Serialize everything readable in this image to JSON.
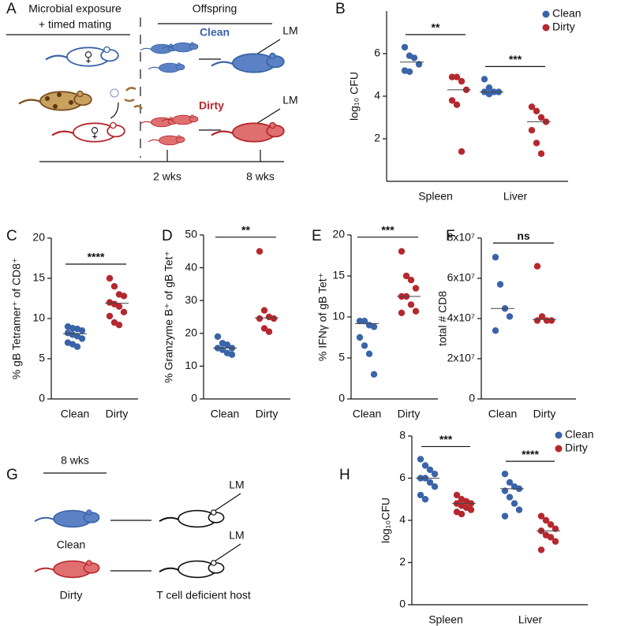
{
  "panel_a": {
    "letter": "A",
    "exposure": "Microbial exposure",
    "mating": "+ timed mating",
    "offspring": "Offspring",
    "clean": "Clean",
    "dirty": "Dirty",
    "lm": [
      "LM",
      "LM"
    ],
    "times": [
      "2 wks",
      "8 wks"
    ]
  },
  "panel_g": {
    "letter": "G",
    "time": "8 wks",
    "lm": [
      "LM",
      "LM"
    ],
    "clean": "Clean",
    "dirty": "Dirty",
    "host": "T cell deficient host"
  },
  "chart_data": [
    {
      "letter": "B",
      "type": "strip",
      "ylabel": "log₁₀ CFU",
      "ylim": [
        0,
        8
      ],
      "yticks": [
        2,
        4,
        6
      ],
      "categories": [
        "Spleen",
        "Liver"
      ],
      "legend": "top right",
      "series": [
        {
          "name": "Clean",
          "color": "#3a64a8",
          "values": [
            [
              6.3,
              5.9,
              5.8,
              5.5,
              5.2,
              5.15
            ],
            [
              4.8,
              4.4,
              4.2,
              4.2,
              4.2,
              4.1
            ]
          ],
          "medians": [
            5.6,
            4.2
          ]
        },
        {
          "name": "Dirty",
          "color": "#b5282e",
          "values": [
            [
              4.9,
              4.9,
              4.7,
              4.3,
              3.8,
              3.6,
              1.4
            ],
            [
              3.5,
              3.3,
              3.0,
              2.8,
              2.4,
              1.8,
              1.3
            ]
          ],
          "medians": [
            4.3,
            2.8
          ]
        }
      ],
      "significance": [
        "**",
        "***"
      ]
    },
    {
      "letter": "C",
      "type": "strip",
      "ylabel": "% gB Tetramer⁺ of CD8⁺",
      "ylim": [
        0,
        20
      ],
      "yticks": [
        0,
        5,
        10,
        15,
        20
      ],
      "categories": [
        "Clean",
        "Dirty"
      ],
      "colors": [
        "#3a64a8",
        "#b5282e"
      ],
      "values": [
        [
          9.0,
          8.8,
          8.7,
          8.5,
          8.2,
          8.0,
          7.8,
          7.5,
          7.0,
          6.8,
          6.5
        ],
        [
          15.0,
          14.0,
          13.0,
          12.8,
          12.0,
          11.8,
          11.5,
          10.8,
          10.3,
          9.5,
          9.2
        ]
      ],
      "medians": [
        8.1,
        11.9
      ],
      "significance": [
        "****"
      ]
    },
    {
      "letter": "D",
      "type": "strip",
      "ylabel": "% Granzyme B⁺ of gB Tet⁺",
      "ylim": [
        0,
        50
      ],
      "yticks": [
        0,
        10,
        20,
        30,
        40,
        50
      ],
      "categories": [
        "Clean",
        "Dirty"
      ],
      "colors": [
        "#3a64a8",
        "#b5282e"
      ],
      "values": [
        [
          19,
          17,
          16.5,
          15.5,
          15.5,
          15,
          14,
          13.5
        ],
        [
          45,
          27,
          25,
          24.5,
          24.5,
          21.5,
          20.5
        ]
      ],
      "medians": [
        15.5,
        24.7
      ],
      "significance": [
        "**"
      ]
    },
    {
      "letter": "E",
      "type": "strip",
      "ylabel": "% IFNγ of gB Tet⁺",
      "ylim": [
        0,
        20
      ],
      "yticks": [
        0,
        5,
        10,
        15,
        20
      ],
      "categories": [
        "Clean",
        "Dirty"
      ],
      "colors": [
        "#3a64a8",
        "#b5282e"
      ],
      "values": [
        [
          9.5,
          9.5,
          9.0,
          8.8,
          7.5,
          6.5,
          5.5,
          3.0
        ],
        [
          18,
          15,
          14.5,
          13.5,
          12.5,
          12.5,
          11.5,
          10.7,
          10.5
        ]
      ],
      "medians": [
        9.2,
        12.5
      ],
      "significance": [
        "***"
      ]
    },
    {
      "letter": "F",
      "type": "strip",
      "ylabel": "total # CD8",
      "ylim": [
        0,
        80000000
      ],
      "yticks": [
        0,
        {
          "value": 20000000,
          "label": "2x10⁷"
        },
        {
          "value": 40000000,
          "label": "4x10⁷"
        },
        {
          "value": 60000000,
          "label": "6x10⁷"
        },
        {
          "value": 80000000,
          "label": "8x10⁷"
        }
      ],
      "categories": [
        "Clean",
        "Dirty"
      ],
      "colors": [
        "#3a64a8",
        "#b5282e"
      ],
      "values": [
        [
          70500000,
          57000000,
          45000000,
          41000000,
          34000000
        ],
        [
          66000000,
          41000000,
          39000000,
          39000000,
          39000000
        ]
      ],
      "medians": [
        45000000,
        39500000
      ],
      "significance": [
        "ns"
      ]
    },
    {
      "letter": "H",
      "type": "strip",
      "ylabel": "log₁₀CFU",
      "ylim": [
        0,
        8
      ],
      "yticks": [
        0,
        2,
        4,
        6,
        8
      ],
      "categories": [
        "Spleen",
        "Liver"
      ],
      "legend": "top right",
      "series": [
        {
          "name": "Clean",
          "color": "#3a64a8",
          "values": [
            [
              6.9,
              6.6,
              6.4,
              6.2,
              6.0,
              6.0,
              5.8,
              5.6,
              5.2,
              5.0
            ],
            [
              6.2,
              5.8,
              5.6,
              5.5,
              5.4,
              5.1,
              4.8,
              4.5,
              4.2
            ]
          ],
          "medians": [
            6.0,
            5.5
          ]
        },
        {
          "name": "Dirty",
          "color": "#b5282e",
          "values": [
            [
              5.2,
              5.0,
              4.9,
              4.8,
              4.8,
              4.7,
              4.6,
              4.5,
              4.4,
              4.3
            ],
            [
              4.2,
              4.0,
              3.8,
              3.6,
              3.5,
              3.3,
              3.2,
              3.0,
              2.6
            ]
          ],
          "medians": [
            4.8,
            3.5
          ]
        }
      ],
      "significance": [
        "***",
        "****"
      ]
    }
  ]
}
